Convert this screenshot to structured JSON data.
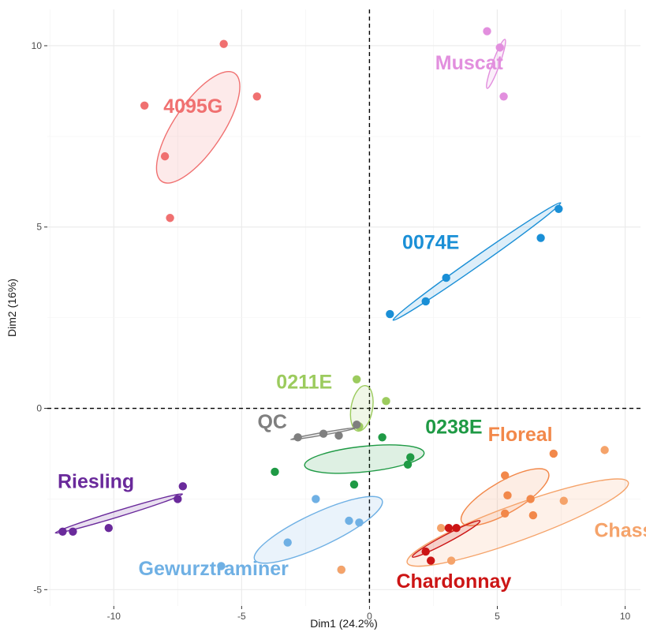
{
  "chart_data": {
    "type": "scatter",
    "title": "",
    "xlabel": "Dim1 (24.2%)",
    "ylabel": "Dim2 (16%)",
    "xlim": [
      -12.6,
      10.6
    ],
    "ylim": [
      -5.45,
      11.0
    ],
    "xticks": [
      -10,
      -5,
      0,
      5,
      10
    ],
    "yticks": [
      -5,
      0,
      5,
      10
    ],
    "xtick_labels": [
      "-10",
      "-5",
      "0",
      "5",
      "10"
    ],
    "ytick_labels": [
      "-5",
      "0",
      "5",
      "10"
    ],
    "grid": true,
    "reference_lines": {
      "x": 0,
      "y": 0,
      "style": "dashed"
    },
    "legend": "none",
    "series": [
      {
        "name": "4095G",
        "color": "#f07070",
        "label_pos": [
          -6.9,
          8.15
        ],
        "ellipse": {
          "center": [
            -6.7,
            7.75
          ],
          "rx": 2.55,
          "ry": 0.95,
          "angle": 56
        },
        "points": [
          [
            -8.8,
            8.35
          ],
          [
            -5.7,
            10.05
          ],
          [
            -4.4,
            8.6
          ],
          [
            -8.0,
            6.95
          ],
          [
            -7.8,
            5.25
          ]
        ]
      },
      {
        "name": "Muscat",
        "color": "#e28fde",
        "label_pos": [
          3.9,
          9.35
        ],
        "ellipse": {
          "center": [
            4.95,
            9.5
          ],
          "rx": 1.02,
          "ry": 0.14,
          "angle": 70
        },
        "points": [
          [
            4.6,
            10.4
          ],
          [
            5.1,
            9.95
          ],
          [
            5.25,
            8.6
          ]
        ]
      },
      {
        "name": "0074E",
        "color": "#1a8fd6",
        "label_pos": [
          2.4,
          4.4
        ],
        "ellipse": {
          "center": [
            4.2,
            4.05
          ],
          "rx": 4.0,
          "ry": 0.18,
          "angle": 35
        },
        "points": [
          [
            7.4,
            5.5
          ],
          [
            6.7,
            4.7
          ],
          [
            3.0,
            3.6
          ],
          [
            2.2,
            2.95
          ],
          [
            0.8,
            2.6
          ]
        ]
      },
      {
        "name": "0211E",
        "color": "#9ccb5e",
        "label_pos": [
          -2.55,
          0.55
        ],
        "ellipse": {
          "center": [
            -0.3,
            0.0
          ],
          "rx": 0.9,
          "ry": 0.42,
          "angle": 80
        },
        "points": [
          [
            -0.5,
            0.8
          ],
          [
            0.65,
            0.2
          ],
          [
            -0.4,
            -0.5
          ]
        ]
      },
      {
        "name": "QC",
        "color": "#7f7f7f",
        "label_pos": [
          -3.8,
          -0.55
        ],
        "ellipse": {
          "center": [
            -1.8,
            -0.7
          ],
          "rx": 1.3,
          "ry": 0.05,
          "angle": 10
        },
        "points": [
          [
            -2.8,
            -0.8
          ],
          [
            -1.8,
            -0.7
          ],
          [
            -1.2,
            -0.75
          ],
          [
            -0.5,
            -0.45
          ]
        ]
      },
      {
        "name": "0238E",
        "color": "#1f9a45",
        "label_pos": [
          3.3,
          -0.7
        ],
        "ellipse": {
          "center": [
            -0.2,
            -1.4
          ],
          "rx": 2.35,
          "ry": 0.5,
          "angle": 6
        },
        "points": [
          [
            -3.7,
            -1.75
          ],
          [
            -0.6,
            -2.1
          ],
          [
            0.5,
            -0.8
          ],
          [
            1.6,
            -1.35
          ],
          [
            1.5,
            -1.55
          ]
        ]
      },
      {
        "name": "Riesling",
        "color": "#6a2a9b",
        "label_pos": [
          -10.7,
          -2.2
        ],
        "ellipse": {
          "center": [
            -9.8,
            -2.9
          ],
          "rx": 2.6,
          "ry": 0.12,
          "angle": 17
        },
        "points": [
          [
            -12.0,
            -3.4
          ],
          [
            -11.6,
            -3.4
          ],
          [
            -10.2,
            -3.3
          ],
          [
            -7.5,
            -2.5
          ],
          [
            -7.3,
            -2.15
          ]
        ]
      },
      {
        "name": "Gewurztraminer",
        "color": "#6fb0e4",
        "label_pos": [
          -6.1,
          -4.6
        ],
        "ellipse": {
          "center": [
            -2.0,
            -3.35
          ],
          "rx": 2.75,
          "ry": 0.65,
          "angle": 25
        },
        "points": [
          [
            -5.8,
            -4.35
          ],
          [
            -3.2,
            -3.7
          ],
          [
            -2.1,
            -2.5
          ],
          [
            -0.8,
            -3.1
          ],
          [
            -0.4,
            -3.15
          ],
          [
            -1.1,
            -4.45
          ]
        ]
      },
      {
        "name": "Floreal",
        "color": "#f2884a",
        "label_pos": [
          5.9,
          -0.9
        ],
        "ellipse": {
          "center": [
            5.3,
            -2.45
          ],
          "rx": 1.95,
          "ry": 0.62,
          "angle": 30
        },
        "points": [
          [
            7.2,
            -1.25
          ],
          [
            5.3,
            -1.85
          ],
          [
            5.4,
            -2.4
          ],
          [
            6.3,
            -2.5
          ],
          [
            5.3,
            -2.9
          ],
          [
            6.4,
            -2.95
          ]
        ]
      },
      {
        "name": "Chasselas",
        "color": "#f5a36a",
        "label_pos": [
          10.7,
          -3.55
        ],
        "ellipse": {
          "center": [
            5.8,
            -3.15
          ],
          "rx": 4.6,
          "ry": 0.7,
          "angle": 20
        },
        "points": [
          [
            9.2,
            -1.15
          ],
          [
            7.6,
            -2.55
          ],
          [
            2.8,
            -3.3
          ],
          [
            3.2,
            -4.2
          ],
          [
            -1.1,
            -4.45
          ]
        ]
      },
      {
        "name": "Chardonnay",
        "color": "#cc1515",
        "label_pos": [
          3.3,
          -4.95
        ],
        "ellipse": {
          "center": [
            3.0,
            -3.6
          ],
          "rx": 1.5,
          "ry": 0.15,
          "angle": 28
        },
        "points": [
          [
            2.2,
            -3.95
          ],
          [
            2.4,
            -4.2
          ],
          [
            3.1,
            -3.3
          ],
          [
            3.4,
            -3.3
          ]
        ]
      }
    ]
  }
}
